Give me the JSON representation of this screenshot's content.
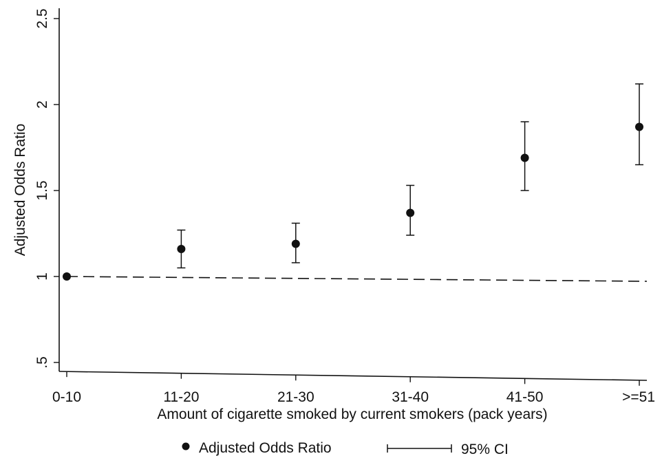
{
  "chart_data": {
    "type": "scatter",
    "title": "",
    "xlabel": "Amount of cigarette smoked by current smokers (pack years)",
    "ylabel": "Adjusted Odds Ratio",
    "categories": [
      "0-10",
      "11-20",
      "21-30",
      "31-40",
      "41-50",
      ">=51"
    ],
    "ylim": [
      0.5,
      2.5
    ],
    "yticks": [
      ".5",
      "1",
      "1.5",
      "2",
      "2.5"
    ],
    "reference_line": {
      "y": 1,
      "style": "dashed"
    },
    "series": [
      {
        "name": "Adjusted Odds Ratio",
        "values": [
          1.0,
          1.16,
          1.19,
          1.37,
          1.69,
          1.87
        ],
        "ci_lower": [
          null,
          1.05,
          1.08,
          1.24,
          1.5,
          1.65
        ],
        "ci_upper": [
          null,
          1.27,
          1.31,
          1.53,
          1.9,
          2.12
        ]
      }
    ],
    "ci_label": "95% CI",
    "legend_position": "bottom",
    "grid": false
  }
}
